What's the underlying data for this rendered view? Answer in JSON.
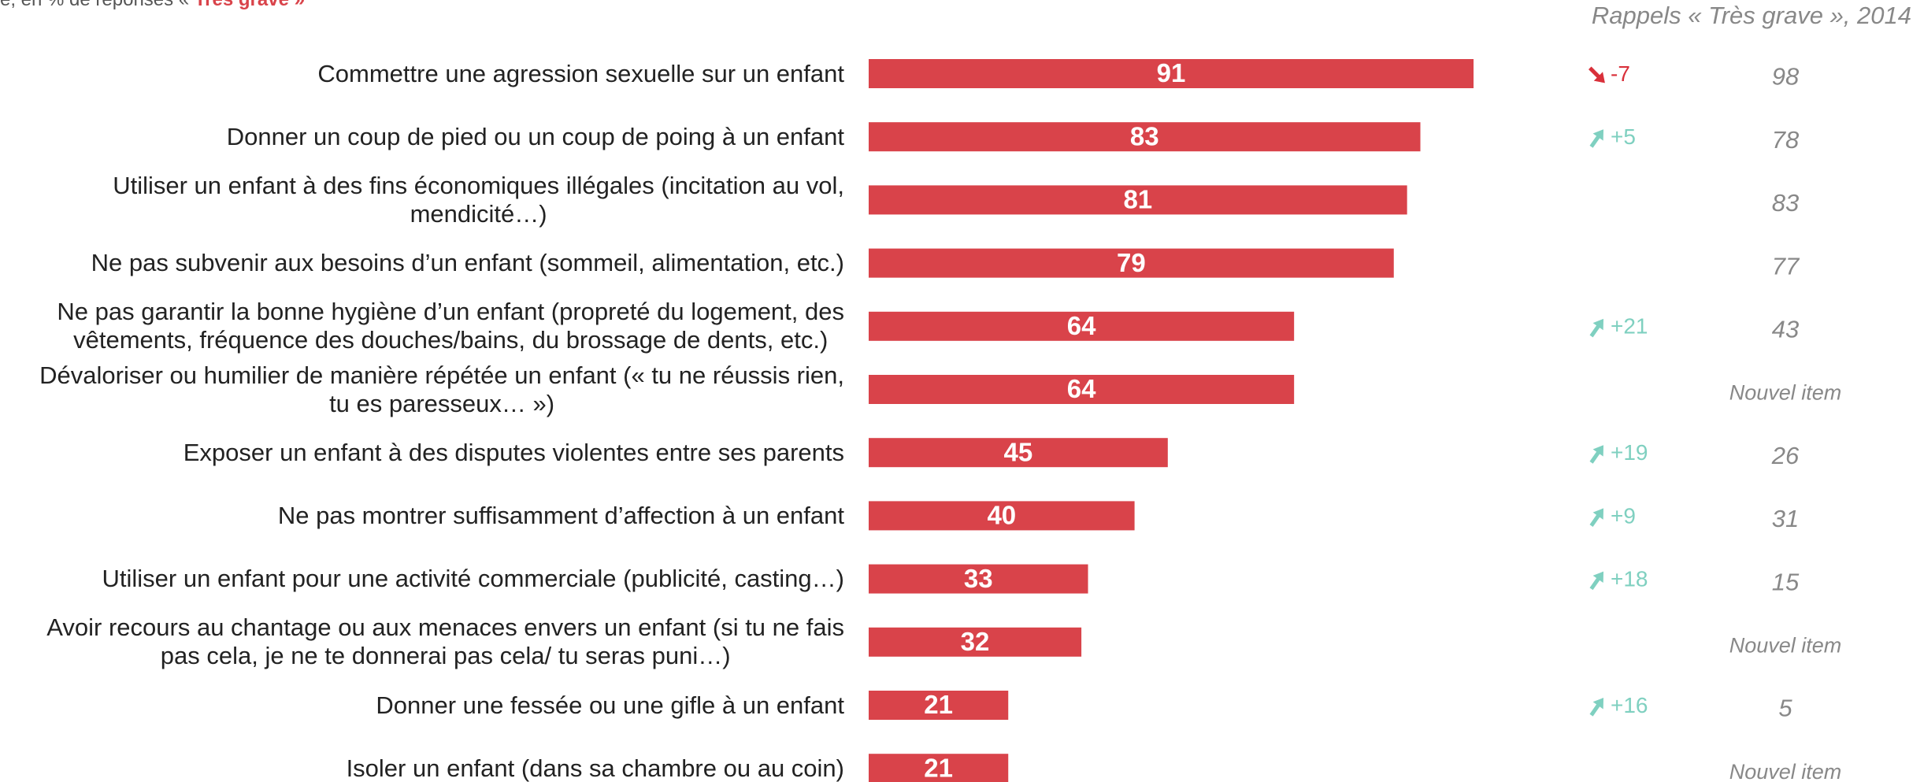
{
  "chart_data": {
    "type": "bar",
    "subtitle": "e, en % de réponses «",
    "subtitle_highlight": "Très grave »",
    "recall_title": "Rappels « Très grave », 2014",
    "categories": [
      "Commettre une agression sexuelle sur un enfant",
      "Donner un coup de pied ou un coup de poing à un enfant",
      "Utiliser un enfant à des fins économiques illégales (incitation au vol,\nmendicité…)",
      "Ne pas subvenir aux besoins d’un enfant (sommeil, alimentation, etc.)",
      "Ne pas garantir la bonne hygiène d’un enfant (propreté du logement, des\nvêtements, fréquence des douches/bains, du brossage de dents, etc.)",
      "Dévaloriser ou humilier de manière répétée un enfant (« tu ne réussis rien,\ntu es paresseux… »)",
      "Exposer un enfant à des disputes violentes entre ses parents",
      "Ne pas montrer suffisamment d’affection à un enfant",
      "Utiliser un enfant pour une activité commerciale (publicité, casting…)",
      "Avoir recours au chantage ou aux menaces envers un enfant (si tu ne fais\npas cela, je ne te donnerai pas cela/ tu seras puni…)",
      "Donner une fessée ou une gifle à un enfant",
      "Isoler un enfant (dans sa chambre ou au coin)"
    ],
    "values": [
      91,
      83,
      81,
      79,
      64,
      64,
      45,
      40,
      33,
      32,
      21,
      21
    ],
    "color": "#d9434a",
    "xlim": [
      0,
      100
    ],
    "changes": [
      -7,
      5,
      null,
      null,
      21,
      null,
      19,
      9,
      18,
      null,
      16,
      null
    ],
    "change_labels": [
      "-7",
      "+5",
      null,
      null,
      "+21",
      null,
      "+19",
      "+9",
      "+18",
      null,
      "+16",
      null
    ],
    "up_color": "#7fd0c0",
    "down_color": "#d9303a",
    "recall": [
      98,
      78,
      83,
      77,
      43,
      "Nouvel  item",
      26,
      31,
      15,
      "Nouvel item",
      5,
      "Nouvel item"
    ]
  }
}
